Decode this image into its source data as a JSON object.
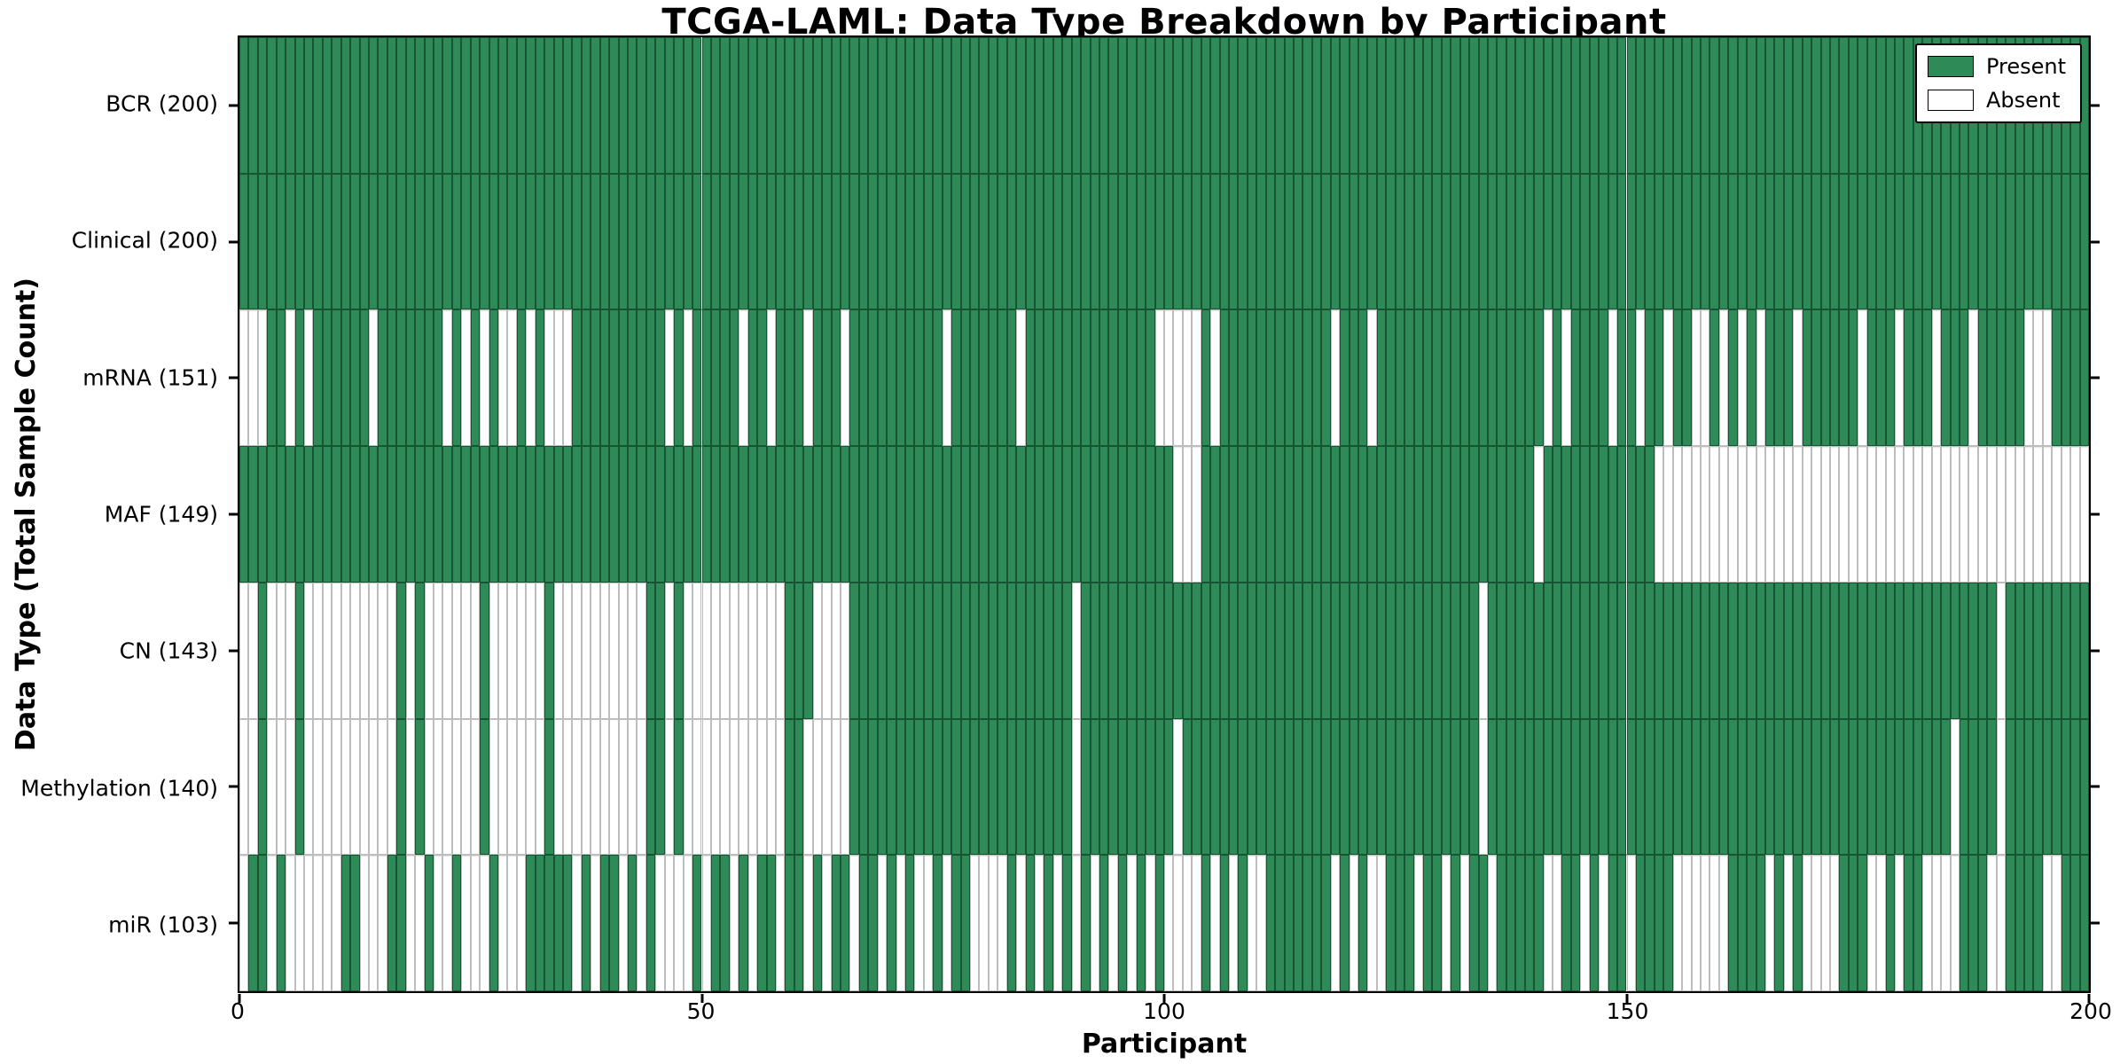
{
  "title": "TCGA-LAML: Data Type Breakdown by Participant",
  "axes": {
    "x_label": "Participant",
    "y_label": "Data Type (Total Sample Count)",
    "x_ticks": [
      0,
      50,
      100,
      150,
      200
    ],
    "x_range": [
      0,
      200
    ]
  },
  "legend": {
    "items": [
      {
        "label": "Present",
        "color": "#2e8b57"
      },
      {
        "label": "Absent",
        "color": "#ffffff"
      }
    ]
  },
  "colors": {
    "present": "#2e8b57",
    "absent": "#ffffff",
    "bar_edge_present": "#0a2816",
    "bar_edge_absent": "#bdbdbd",
    "frame": "#000000",
    "grid": "#9a9a9a"
  },
  "chart_data": {
    "type": "heatmap",
    "title": "TCGA-LAML: Data Type Breakdown by Participant",
    "xlabel": "Participant",
    "ylabel": "Data Type (Total Sample Count)",
    "x_range": [
      0,
      200
    ],
    "n_participants": 200,
    "states": [
      "Present",
      "Absent"
    ],
    "rows": [
      {
        "name": "BCR",
        "label": "BCR (200)",
        "present_count": 200,
        "absent": []
      },
      {
        "name": "Clinical",
        "label": "Clinical (200)",
        "present_count": 200,
        "absent": []
      },
      {
        "name": "mRNA",
        "label": "mRNA (151)",
        "present_count": 151,
        "absent": [
          0,
          1,
          2,
          5,
          7,
          14,
          22,
          24,
          26,
          28,
          29,
          31,
          33,
          34,
          35,
          46,
          48,
          54,
          57,
          61,
          65,
          76,
          84,
          99,
          100,
          101,
          102,
          103,
          105,
          118,
          122,
          141,
          143,
          148,
          151,
          154,
          157,
          158,
          160,
          162,
          164,
          168,
          175,
          179,
          183,
          187,
          193,
          194,
          195
        ]
      },
      {
        "name": "MAF",
        "label": "MAF (149)",
        "present_count": 149,
        "absent": [
          101,
          102,
          103,
          140,
          153,
          154,
          155,
          156,
          157,
          158,
          159,
          160,
          161,
          162,
          163,
          164,
          165,
          166,
          167,
          168,
          169,
          170,
          171,
          172,
          173,
          174,
          175,
          176,
          177,
          178,
          179,
          180,
          181,
          182,
          183,
          184,
          185,
          186,
          187,
          188,
          189,
          190,
          191,
          192,
          193,
          194,
          195,
          196,
          197,
          198,
          199
        ]
      },
      {
        "name": "CN",
        "label": "CN (143)",
        "present_count": 143,
        "absent": [
          0,
          1,
          3,
          4,
          5,
          7,
          8,
          9,
          10,
          11,
          12,
          13,
          14,
          15,
          16,
          18,
          20,
          21,
          22,
          23,
          24,
          25,
          27,
          28,
          29,
          30,
          31,
          32,
          34,
          35,
          36,
          37,
          38,
          39,
          40,
          41,
          42,
          43,
          46,
          48,
          49,
          50,
          51,
          52,
          53,
          54,
          55,
          56,
          57,
          58,
          62,
          63,
          64,
          65,
          90,
          134,
          190
        ]
      },
      {
        "name": "Methylation",
        "label": "Methylation (140)",
        "present_count": 140,
        "absent": [
          0,
          1,
          3,
          4,
          5,
          7,
          8,
          9,
          10,
          11,
          12,
          13,
          14,
          15,
          16,
          18,
          20,
          21,
          22,
          23,
          24,
          25,
          27,
          28,
          29,
          30,
          31,
          32,
          34,
          35,
          36,
          37,
          38,
          39,
          40,
          41,
          42,
          43,
          46,
          48,
          49,
          50,
          51,
          52,
          53,
          54,
          55,
          56,
          57,
          58,
          61,
          62,
          63,
          64,
          65,
          90,
          101,
          134,
          185,
          190
        ]
      },
      {
        "name": "miR",
        "label": "miR (103)",
        "present_count": 103,
        "absent": [
          0,
          3,
          5,
          6,
          7,
          8,
          9,
          10,
          13,
          14,
          15,
          18,
          19,
          21,
          22,
          24,
          25,
          26,
          28,
          29,
          30,
          36,
          38,
          41,
          43,
          45,
          46,
          47,
          48,
          50,
          53,
          55,
          58,
          61,
          63,
          66,
          69,
          71,
          73,
          74,
          76,
          79,
          80,
          81,
          82,
          84,
          86,
          88,
          90,
          92,
          94,
          96,
          98,
          100,
          101,
          102,
          103,
          105,
          107,
          109,
          110,
          118,
          120,
          122,
          123,
          127,
          130,
          132,
          135,
          141,
          142,
          145,
          147,
          150,
          155,
          156,
          157,
          158,
          159,
          160,
          165,
          167,
          169,
          170,
          171,
          172,
          176,
          177,
          179,
          182,
          183,
          184,
          185,
          189,
          190,
          195,
          196
        ]
      }
    ]
  }
}
